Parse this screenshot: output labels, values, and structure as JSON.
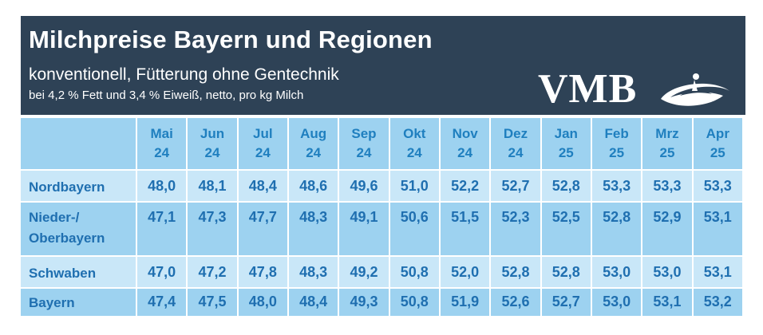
{
  "header": {
    "title": "Milchpreise Bayern und Regionen",
    "subtitle": "konventionell, Fütterung ohne Gentechnik",
    "note": "bei 4,2 % Fett und 3,4 % Eiweiß, netto, pro kg Milch",
    "logo_text": "VMB"
  },
  "colors": {
    "header_bg": "#2e4256",
    "header_text": "#ffffff",
    "row_light": "#c9e7f8",
    "row_dark": "#9dd2f0",
    "text_blue": "#1f7fbf"
  },
  "chart_data": {
    "type": "table",
    "title": "Milchpreise Bayern und Regionen",
    "columns": [
      {
        "month": "Mai",
        "year": "24"
      },
      {
        "month": "Jun",
        "year": "24"
      },
      {
        "month": "Jul",
        "year": "24"
      },
      {
        "month": "Aug",
        "year": "24"
      },
      {
        "month": "Sep",
        "year": "24"
      },
      {
        "month": "Okt",
        "year": "24"
      },
      {
        "month": "Nov",
        "year": "24"
      },
      {
        "month": "Dez",
        "year": "24"
      },
      {
        "month": "Jan",
        "year": "25"
      },
      {
        "month": "Feb",
        "year": "25"
      },
      {
        "month": "Mrz",
        "year": "25"
      },
      {
        "month": "Apr",
        "year": "25"
      }
    ],
    "rows": [
      {
        "region_line1": "Nordbayern",
        "region_line2": "",
        "values": [
          "48,0",
          "48,1",
          "48,4",
          "48,6",
          "49,6",
          "51,0",
          "52,2",
          "52,7",
          "52,8",
          "53,3",
          "53,3",
          "53,3"
        ]
      },
      {
        "region_line1": "Nieder-/",
        "region_line2": "Oberbayern",
        "values": [
          "47,1",
          "47,3",
          "47,7",
          "48,3",
          "49,1",
          "50,6",
          "51,5",
          "52,3",
          "52,5",
          "52,8",
          "52,9",
          "53,1"
        ]
      },
      {
        "region_line1": "Schwaben",
        "region_line2": "",
        "values": [
          "47,0",
          "47,2",
          "47,8",
          "48,3",
          "49,2",
          "50,8",
          "52,0",
          "52,8",
          "52,8",
          "53,0",
          "53,0",
          "53,1"
        ]
      },
      {
        "region_line1": "Bayern",
        "region_line2": "",
        "values": [
          "47,4",
          "47,5",
          "48,0",
          "48,4",
          "49,3",
          "50,8",
          "51,9",
          "52,6",
          "52,7",
          "53,0",
          "53,1",
          "53,2"
        ]
      }
    ]
  }
}
